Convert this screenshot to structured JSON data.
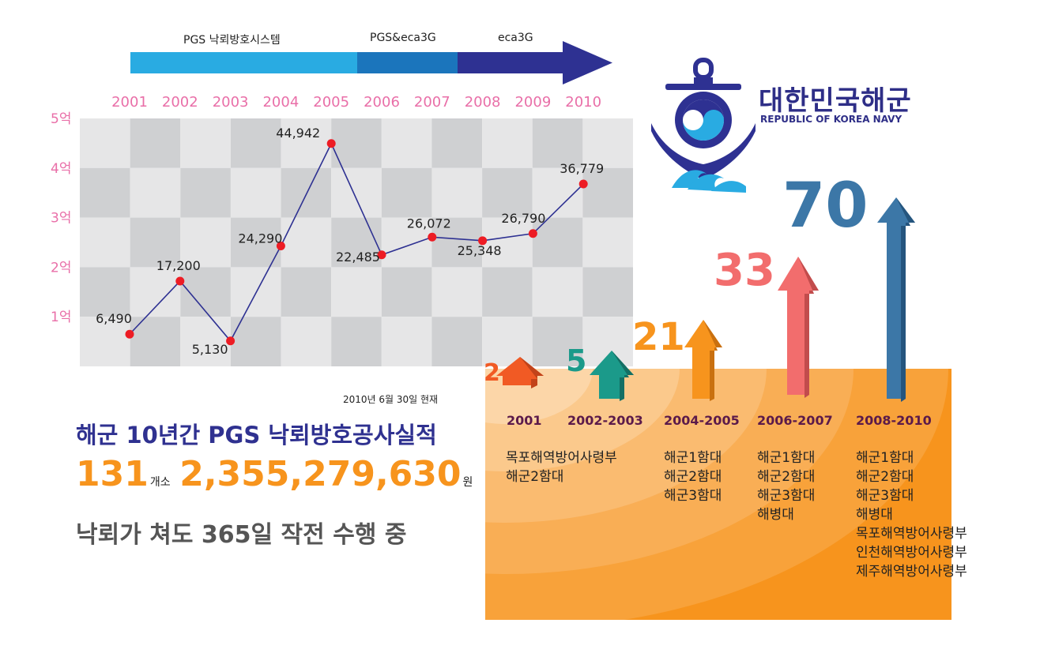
{
  "timeline": {
    "phases": [
      {
        "label": "PGS 낙뢰방호시스템",
        "color": "#29abe2"
      },
      {
        "label": "PGS&eca3G",
        "color": "#1b75bc"
      },
      {
        "label": "eca3G",
        "color": "#2e3192"
      }
    ]
  },
  "logo": {
    "name_kr": "대한민국해군",
    "name_en": "REPUBLIC OF KOREA NAVY"
  },
  "chart_data": {
    "type": "line",
    "categories": [
      "2001",
      "2002",
      "2003",
      "2004",
      "2005",
      "2006",
      "2007",
      "2008",
      "2009",
      "2010"
    ],
    "values": [
      6490,
      17200,
      5130,
      24290,
      44942,
      22485,
      26072,
      25348,
      26790,
      36779
    ],
    "value_labels": [
      "6,490",
      "17,200",
      "5,130",
      "24,290",
      "44,942",
      "22,485",
      "26,072",
      "25,348",
      "26,790",
      "36,779"
    ],
    "y_ticks": [
      "1억",
      "2억",
      "3억",
      "4억",
      "5억"
    ],
    "ylim": [
      0,
      50000
    ],
    "grid": true,
    "line_color": "#2e3192",
    "point_color": "#ed1c24"
  },
  "summary": {
    "as_of": "2010년 6월 30일 현재",
    "headline": "해군 10년간 PGS 낙뢰방호공사실적",
    "count": "131",
    "count_unit": "개소",
    "amount": "2,355,279,630",
    "amount_unit": "원",
    "tagline": "낙뢰가 쳐도 365일 작전 수행 중"
  },
  "growth": [
    {
      "number": "2",
      "period": "2001",
      "units": [
        "목포해역방어사령부",
        "해군2함대"
      ],
      "color": "#f15a24"
    },
    {
      "number": "5",
      "period": "2002-2003",
      "units": [],
      "color": "#1b9a8a"
    },
    {
      "number": "21",
      "period": "2004-2005",
      "units": [
        "해군1함대",
        "해군2함대",
        "해군3함대"
      ],
      "color": "#f7941d"
    },
    {
      "number": "33",
      "period": "2006-2007",
      "units": [
        "해군1함대",
        "해군2함대",
        "해군3함대",
        "해병대"
      ],
      "color": "#f26d6d"
    },
    {
      "number": "70",
      "period": "2008-2010",
      "units": [
        "해군1함대",
        "해군2함대",
        "해군3함대",
        "해병대",
        "목포해역방어사령부",
        "인천해역방어사령부",
        "제주해역방어사령부"
      ],
      "color": "#3c77a7"
    }
  ]
}
